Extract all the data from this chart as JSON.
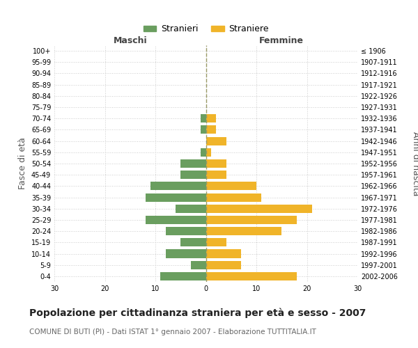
{
  "age_groups": [
    "100+",
    "95-99",
    "90-94",
    "85-89",
    "80-84",
    "75-79",
    "70-74",
    "65-69",
    "60-64",
    "55-59",
    "50-54",
    "45-49",
    "40-44",
    "35-39",
    "30-34",
    "25-29",
    "20-24",
    "15-19",
    "10-14",
    "5-9",
    "0-4"
  ],
  "birth_years": [
    "≤ 1906",
    "1907-1911",
    "1912-1916",
    "1917-1921",
    "1922-1926",
    "1927-1931",
    "1932-1936",
    "1937-1941",
    "1942-1946",
    "1947-1951",
    "1952-1956",
    "1957-1961",
    "1962-1966",
    "1967-1971",
    "1972-1976",
    "1977-1981",
    "1982-1986",
    "1987-1991",
    "1992-1996",
    "1997-2001",
    "2002-2006"
  ],
  "males": [
    0,
    0,
    0,
    0,
    0,
    0,
    1,
    1,
    0,
    1,
    5,
    5,
    11,
    12,
    6,
    12,
    8,
    5,
    8,
    3,
    9
  ],
  "females": [
    0,
    0,
    0,
    0,
    0,
    0,
    2,
    2,
    4,
    1,
    4,
    4,
    10,
    11,
    21,
    18,
    15,
    4,
    7,
    7,
    18
  ],
  "male_color": "#6a9e5f",
  "female_color": "#f0b429",
  "background_color": "#ffffff",
  "grid_color": "#cccccc",
  "center_line_color": "#999966",
  "xlim": 30,
  "title": "Popolazione per cittadinanza straniera per età e sesso - 2007",
  "subtitle": "COMUNE DI BUTI (PI) - Dati ISTAT 1° gennaio 2007 - Elaborazione TUTTITALIA.IT",
  "xlabel_left": "Maschi",
  "xlabel_right": "Femmine",
  "ylabel_left": "Fasce di età",
  "ylabel_right": "Anni di nascita",
  "legend_male": "Stranieri",
  "legend_female": "Straniere",
  "title_fontsize": 10,
  "subtitle_fontsize": 7.5,
  "tick_fontsize": 7,
  "label_fontsize": 9
}
